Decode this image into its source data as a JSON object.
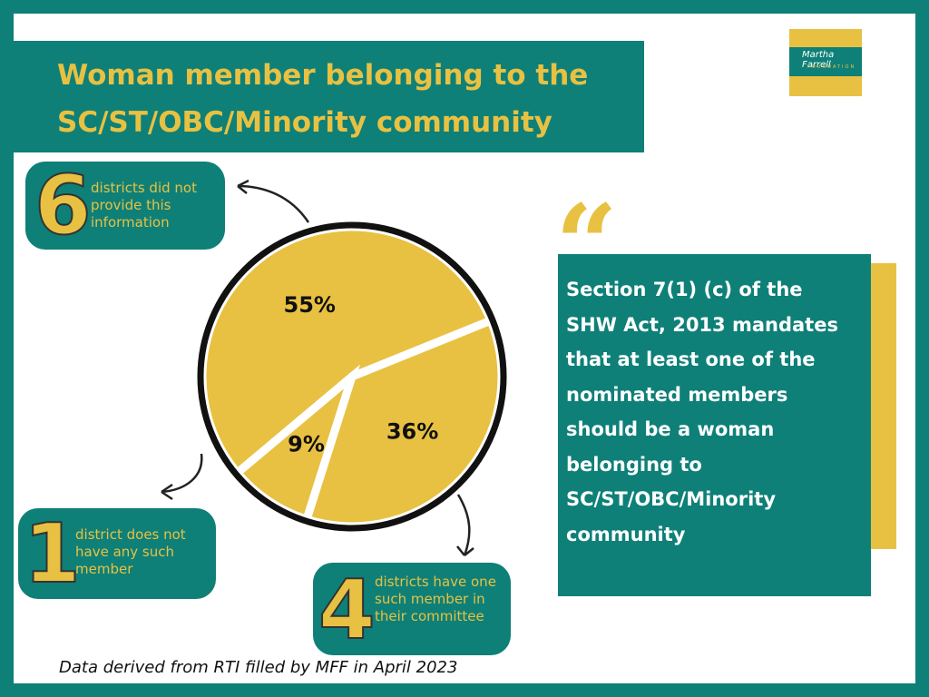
{
  "title": "Woman member belonging to the SC/ST/OBC/Minority community",
  "logo": {
    "name": "Martha Farrell",
    "subtitle": "FOUNDATION"
  },
  "chart_data": {
    "type": "pie",
    "values": [
      55,
      9,
      36
    ],
    "value_labels": [
      "55%",
      "9%",
      "36%"
    ],
    "color": "#e8c142"
  },
  "callouts": [
    {
      "number": 6,
      "text": "districts did not provide this information"
    },
    {
      "number": 1,
      "text": "district does not have any such member"
    },
    {
      "number": 4,
      "text": "districts have one such member in their committee"
    }
  ],
  "quote": "Section 7(1) (c) of the SHW Act, 2013 mandates that at least one of the nominated members should be a woman belonging to SC/ST/OBC/Minority community",
  "footnote": "Data derived from RTI filled by MFF  in April 2023"
}
